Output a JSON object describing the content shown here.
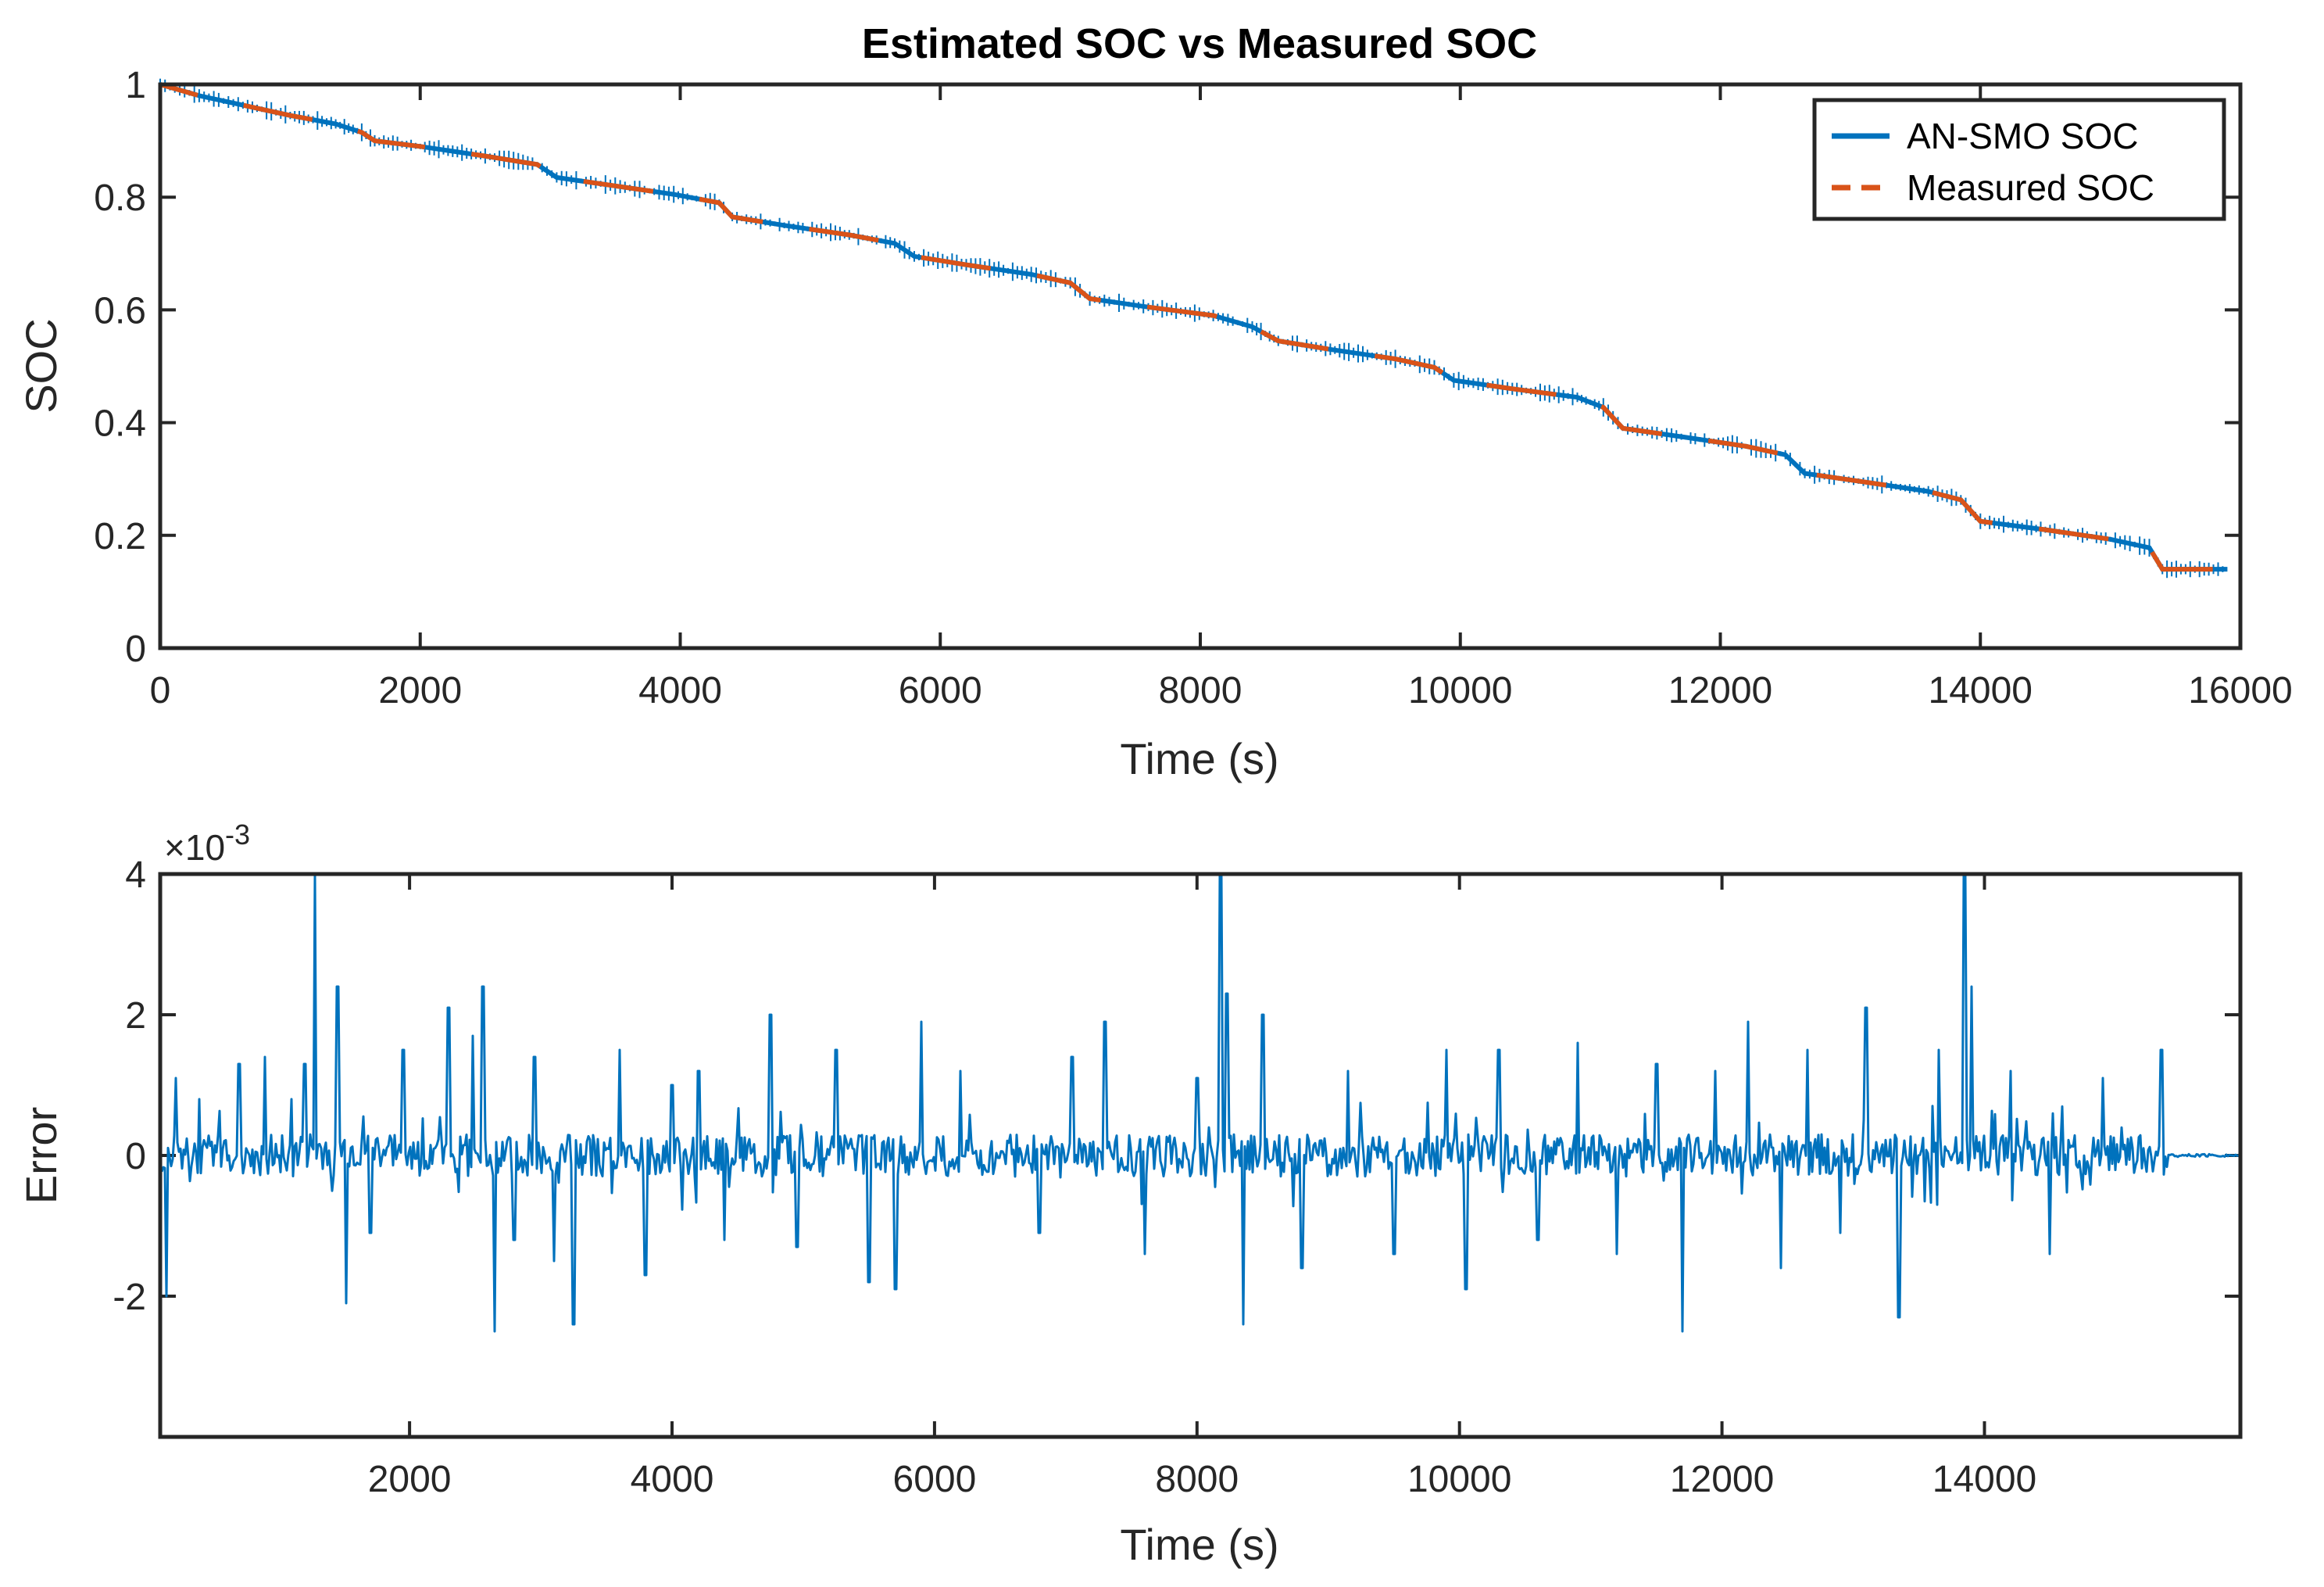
{
  "chart_data": [
    {
      "type": "line",
      "title": "Estimated SOC vs Measured SOC",
      "xlabel": "Time (s)",
      "ylabel": "SOC",
      "xlim": [
        0,
        16000
      ],
      "ylim": [
        0,
        1
      ],
      "xticks": [
        "0",
        "2000",
        "4000",
        "6000",
        "8000",
        "10000",
        "12000",
        "14000",
        "16000"
      ],
      "xtick_values": [
        0,
        2000,
        4000,
        6000,
        8000,
        10000,
        12000,
        14000,
        16000
      ],
      "yticks": [
        "0",
        "0.2",
        "0.4",
        "0.6",
        "0.8",
        "1"
      ],
      "ytick_values": [
        0,
        0.2,
        0.4,
        0.6,
        0.8,
        1
      ],
      "legend": {
        "position": "top-right",
        "entries": [
          {
            "label": "AN-SMO SOC",
            "color": "#0072BD",
            "style": "solid"
          },
          {
            "label": "Measured SOC",
            "color": "#D95319",
            "style": "dashed"
          }
        ]
      },
      "series": [
        {
          "name": "AN-SMO SOC",
          "color": "#0072BD",
          "x": [
            0,
            300,
            600,
            1000,
            1350,
            1550,
            1650,
            2000,
            2500,
            2900,
            3050,
            3500,
            3950,
            4300,
            4400,
            4800,
            5300,
            5650,
            5800,
            6200,
            6700,
            7000,
            7150,
            7600,
            8100,
            8400,
            8600,
            9000,
            9500,
            9800,
            9950,
            10400,
            10900,
            11100,
            11250,
            11700,
            12200,
            12500,
            12650,
            13100,
            13600,
            13850,
            14000,
            14500,
            15000,
            15300,
            15400,
            15900
          ],
          "y": [
            1.0,
            0.98,
            0.965,
            0.945,
            0.93,
            0.915,
            0.9,
            0.89,
            0.873,
            0.858,
            0.835,
            0.82,
            0.805,
            0.79,
            0.765,
            0.75,
            0.733,
            0.718,
            0.695,
            0.68,
            0.663,
            0.648,
            0.62,
            0.605,
            0.59,
            0.57,
            0.545,
            0.53,
            0.513,
            0.498,
            0.475,
            0.46,
            0.445,
            0.427,
            0.39,
            0.375,
            0.358,
            0.343,
            0.31,
            0.295,
            0.278,
            0.263,
            0.225,
            0.21,
            0.193,
            0.178,
            0.14,
            0.14
          ]
        },
        {
          "name": "Measured SOC",
          "color": "#D95319",
          "x": [
            0,
            300,
            600,
            1000,
            1350,
            1550,
            1650,
            2000,
            2500,
            2900,
            3050,
            3500,
            3950,
            4300,
            4400,
            4800,
            5300,
            5650,
            5800,
            6200,
            6700,
            7000,
            7150,
            7600,
            8100,
            8400,
            8600,
            9000,
            9500,
            9800,
            9950,
            10400,
            10900,
            11100,
            11250,
            11700,
            12200,
            12500,
            12650,
            13100,
            13600,
            13850,
            14000,
            14500,
            15000,
            15300,
            15400,
            15900
          ],
          "y": [
            1.0,
            0.98,
            0.965,
            0.945,
            0.93,
            0.915,
            0.9,
            0.89,
            0.873,
            0.858,
            0.835,
            0.82,
            0.805,
            0.79,
            0.765,
            0.75,
            0.733,
            0.718,
            0.695,
            0.68,
            0.663,
            0.648,
            0.62,
            0.605,
            0.59,
            0.57,
            0.545,
            0.53,
            0.513,
            0.498,
            0.475,
            0.46,
            0.445,
            0.427,
            0.39,
            0.375,
            0.358,
            0.343,
            0.31,
            0.295,
            0.278,
            0.263,
            0.225,
            0.21,
            0.193,
            0.178,
            0.14,
            0.14
          ]
        }
      ]
    },
    {
      "type": "line",
      "title": "",
      "xlabel": "Time (s)",
      "ylabel": "Error",
      "y_exponent_label": "×10",
      "y_exponent_power": "-3",
      "xlim": [
        100,
        15950
      ],
      "ylim": [
        -0.004,
        0.004
      ],
      "xticks": [
        "2000",
        "4000",
        "6000",
        "8000",
        "10000",
        "12000",
        "14000"
      ],
      "xtick_values": [
        2000,
        4000,
        6000,
        8000,
        10000,
        12000,
        14000
      ],
      "yticks": [
        "-2",
        "0",
        "2",
        "4"
      ],
      "ytick_values": [
        -0.002,
        0,
        0.002,
        0.004
      ],
      "noise_amplitude": 0.0003,
      "noise_end_time": 15400,
      "series": [
        {
          "name": "Error",
          "color": "#0072BD",
          "spikes_x": [
            150,
            220,
            400,
            700,
            900,
            1100,
            1200,
            1280,
            1450,
            1520,
            1700,
            1950,
            2300,
            2480,
            2560,
            2650,
            2800,
            2950,
            3100,
            3250,
            3600,
            3800,
            4000,
            4200,
            4400,
            4750,
            4950,
            5250,
            5500,
            5700,
            5900,
            6200,
            6800,
            7050,
            7300,
            7600,
            8000,
            8180,
            8230,
            8350,
            8500,
            8800,
            9150,
            9500,
            9900,
            10050,
            10300,
            10600,
            10900,
            11200,
            11500,
            11700,
            11950,
            12200,
            12450,
            12650,
            12900,
            13100,
            13350,
            13650,
            13850,
            13900,
            14200,
            14500,
            14900,
            15350
          ],
          "spikes_y": [
            -0.002,
            0.0011,
            0.0008,
            0.0013,
            0.0014,
            0.0008,
            0.0013,
            0.004,
            0.0024,
            -0.0021,
            -0.0011,
            0.0015,
            0.0021,
            0.0017,
            0.0024,
            -0.0025,
            -0.0012,
            0.0014,
            -0.0015,
            -0.0024,
            0.0015,
            -0.0017,
            0.001,
            0.0012,
            -0.0012,
            0.002,
            -0.0013,
            0.0015,
            -0.0018,
            -0.0019,
            0.0019,
            0.0012,
            -0.0011,
            0.0014,
            0.0019,
            -0.0014,
            0.0011,
            0.004,
            0.0023,
            -0.0024,
            0.002,
            -0.0016,
            0.0012,
            -0.0014,
            0.0015,
            -0.0019,
            0.0015,
            -0.0012,
            0.0016,
            -0.0014,
            0.0013,
            -0.0025,
            0.0012,
            0.0019,
            -0.0016,
            0.0015,
            -0.0011,
            0.0021,
            -0.0023,
            0.0015,
            0.004,
            0.0024,
            0.0012,
            -0.0014,
            0.0011,
            0.0015
          ]
        }
      ]
    }
  ]
}
